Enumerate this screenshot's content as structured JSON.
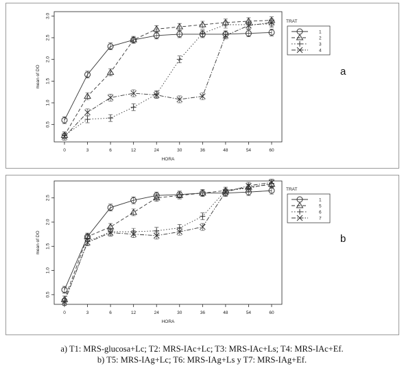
{
  "chart_data": [
    {
      "type": "line",
      "panel_letter": "a",
      "xlabel": "HORA",
      "ylabel": "mean of DO",
      "categories": [
        "0",
        "3",
        "6",
        "12",
        "24",
        "30",
        "36",
        "48",
        "54",
        "60"
      ],
      "yticks": [
        "0.5",
        "1.0",
        "1.5",
        "2.0",
        "2.5",
        "3.0"
      ],
      "ylim": [
        0.1,
        3.1
      ],
      "legend_title": "TRAT",
      "legend_position": "top-right",
      "grid": false,
      "series": [
        {
          "name": "1",
          "marker": "circle",
          "dash": "solid",
          "values": [
            0.6,
            1.65,
            2.3,
            2.45,
            2.55,
            2.58,
            2.58,
            2.58,
            2.6,
            2.62
          ]
        },
        {
          "name": "2",
          "marker": "triangle",
          "dash": "dashed",
          "values": [
            0.25,
            1.15,
            1.7,
            2.45,
            2.7,
            2.75,
            2.8,
            2.85,
            2.88,
            2.9
          ]
        },
        {
          "name": "3",
          "marker": "plus",
          "dash": "dotted",
          "values": [
            0.25,
            0.62,
            0.65,
            0.9,
            1.2,
            2.0,
            2.6,
            2.8,
            2.8,
            2.82
          ]
        },
        {
          "name": "4",
          "marker": "cross",
          "dash": "dashdot",
          "values": [
            0.22,
            0.78,
            1.12,
            1.22,
            1.18,
            1.08,
            1.15,
            2.55,
            2.78,
            2.85
          ]
        }
      ]
    },
    {
      "type": "line",
      "panel_letter": "b",
      "xlabel": "HORA",
      "ylabel": "mean of DO",
      "categories": [
        "0",
        "3",
        "6",
        "12",
        "24",
        "30",
        "36",
        "48",
        "54",
        "60"
      ],
      "yticks": [
        "0.5",
        "1.0",
        "1.5",
        "2.0",
        "2.5"
      ],
      "ylim": [
        0.3,
        2.85
      ],
      "legend_title": "TRAT",
      "legend_position": "top-right",
      "grid": false,
      "series": [
        {
          "name": "1",
          "marker": "circle",
          "dash": "solid",
          "values": [
            0.6,
            1.7,
            2.3,
            2.45,
            2.55,
            2.57,
            2.6,
            2.6,
            2.62,
            2.65
          ]
        },
        {
          "name": "5",
          "marker": "triangle",
          "dash": "dashed",
          "values": [
            0.4,
            1.7,
            1.9,
            2.2,
            2.5,
            2.55,
            2.6,
            2.65,
            2.72,
            2.78
          ]
        },
        {
          "name": "6",
          "marker": "plus",
          "dash": "dotted",
          "values": [
            0.35,
            1.6,
            1.8,
            1.8,
            1.82,
            1.88,
            2.12,
            2.65,
            2.7,
            2.8
          ]
        },
        {
          "name": "7",
          "marker": "cross",
          "dash": "dashdot",
          "values": [
            0.35,
            1.58,
            1.78,
            1.75,
            1.72,
            1.8,
            1.9,
            2.62,
            2.75,
            2.82
          ]
        }
      ]
    }
  ],
  "captions": {
    "a": "a) T1: MRS-glucosa+Lc; T2: MRS-IAc+Lc; T3: MRS-IAc+Ls; T4: MRS-IAc+Ef.",
    "b": "b) T5: MRS-IAg+Lc; T6: MRS-IAg+Ls y T7: MRS-IAg+Ef."
  },
  "colors": {
    "line": "#333333",
    "axis": "#222222",
    "frame": "#9a9a9a"
  }
}
